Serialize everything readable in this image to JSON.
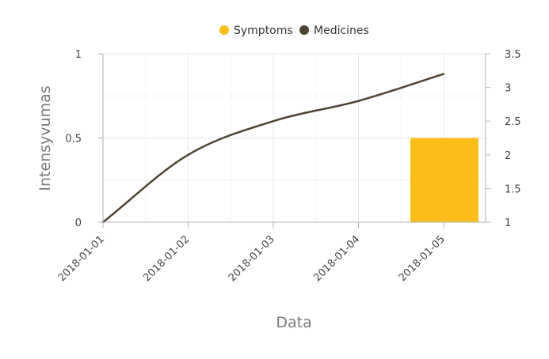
{
  "chart_data": {
    "type": "line",
    "x": [
      "2018-01-01",
      "2018-01-02",
      "2018-01-03",
      "2018-01-04",
      "2018-01-05"
    ],
    "xlabel": "Data",
    "ylabel": "Intensyvumas",
    "ylim": [
      0,
      1
    ],
    "y_ticks": [
      "0",
      "0.5",
      "1"
    ],
    "y2lim": [
      1,
      3.5
    ],
    "y2_ticks": [
      "1",
      "1.5",
      "2",
      "2.5",
      "3",
      "3.5"
    ],
    "grid": true,
    "legend_position": "top-center",
    "series": [
      {
        "name": "Symptoms",
        "type": "bar",
        "axis": "left",
        "color": "#fdbd1a",
        "x": [
          "2018-01-05"
        ],
        "values": [
          0.5
        ]
      },
      {
        "name": "Medicines",
        "type": "line",
        "axis": "right",
        "color": "#4d4331",
        "x": [
          "2018-01-01",
          "2018-01-02",
          "2018-01-03",
          "2018-01-04",
          "2018-01-05"
        ],
        "values": [
          1.0,
          2.0,
          2.5,
          2.8,
          3.2
        ]
      }
    ]
  }
}
